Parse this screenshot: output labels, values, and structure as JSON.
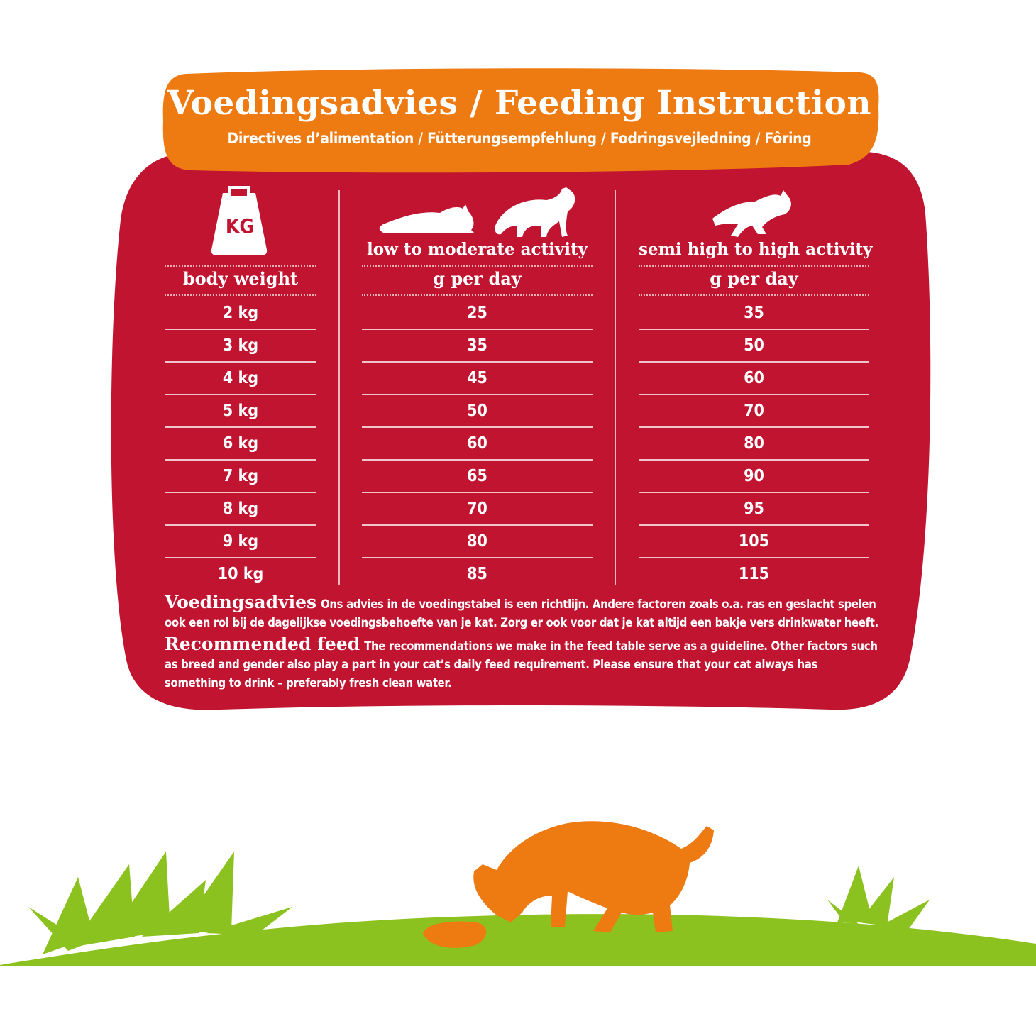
{
  "header": {
    "title": "Voedingsadvies / Feeding Instruction",
    "subtitle": "Directives d’alimentation / Fütterungsempfehlung / Fodringsvejledning / Fôring"
  },
  "icons": {
    "weight": "weight-kg-icon",
    "weight_label": "KG",
    "low_activity": "resting-cat-icon",
    "walking": "walking-cat-icon",
    "high_activity": "running-cat-icon"
  },
  "table": {
    "columns": [
      {
        "activity": "",
        "unit": "body weight"
      },
      {
        "activity": "low to moderate activity",
        "unit": "g per day"
      },
      {
        "activity": "semi high to high activity",
        "unit": "g per day"
      }
    ],
    "rows": [
      [
        "2 kg",
        "25",
        "35"
      ],
      [
        "3 kg",
        "35",
        "50"
      ],
      [
        "4 kg",
        "45",
        "60"
      ],
      [
        "5 kg",
        "50",
        "70"
      ],
      [
        "6 kg",
        "60",
        "80"
      ],
      [
        "7 kg",
        "65",
        "90"
      ],
      [
        "8 kg",
        "70",
        "95"
      ],
      [
        "9 kg",
        "80",
        "105"
      ],
      [
        "10 kg",
        "85",
        "115"
      ]
    ]
  },
  "notes": {
    "nl_lead": "Voedingsadvies",
    "nl_text": "Ons advies in de voedingstabel is een richtlijn. Andere factoren zoals o.a. ras en geslacht spelen ook een rol bij de dagelijkse voedingsbehoefte van je kat. Zorg er ook voor dat je kat altijd een bakje vers drinkwater heeft.",
    "en_lead": "Recommended feed",
    "en_text": "The recommendations we make in the feed table serve as a guideline. Other factors such as breed and gender also play a part in your cat’s daily feed requirement. Please ensure that your cat always has something to drink – preferably fresh clean water."
  },
  "colors": {
    "card": "#c01430",
    "header_band": "#ee7a12",
    "grass": "#8cc21f",
    "cat": "#ee7a12"
  }
}
